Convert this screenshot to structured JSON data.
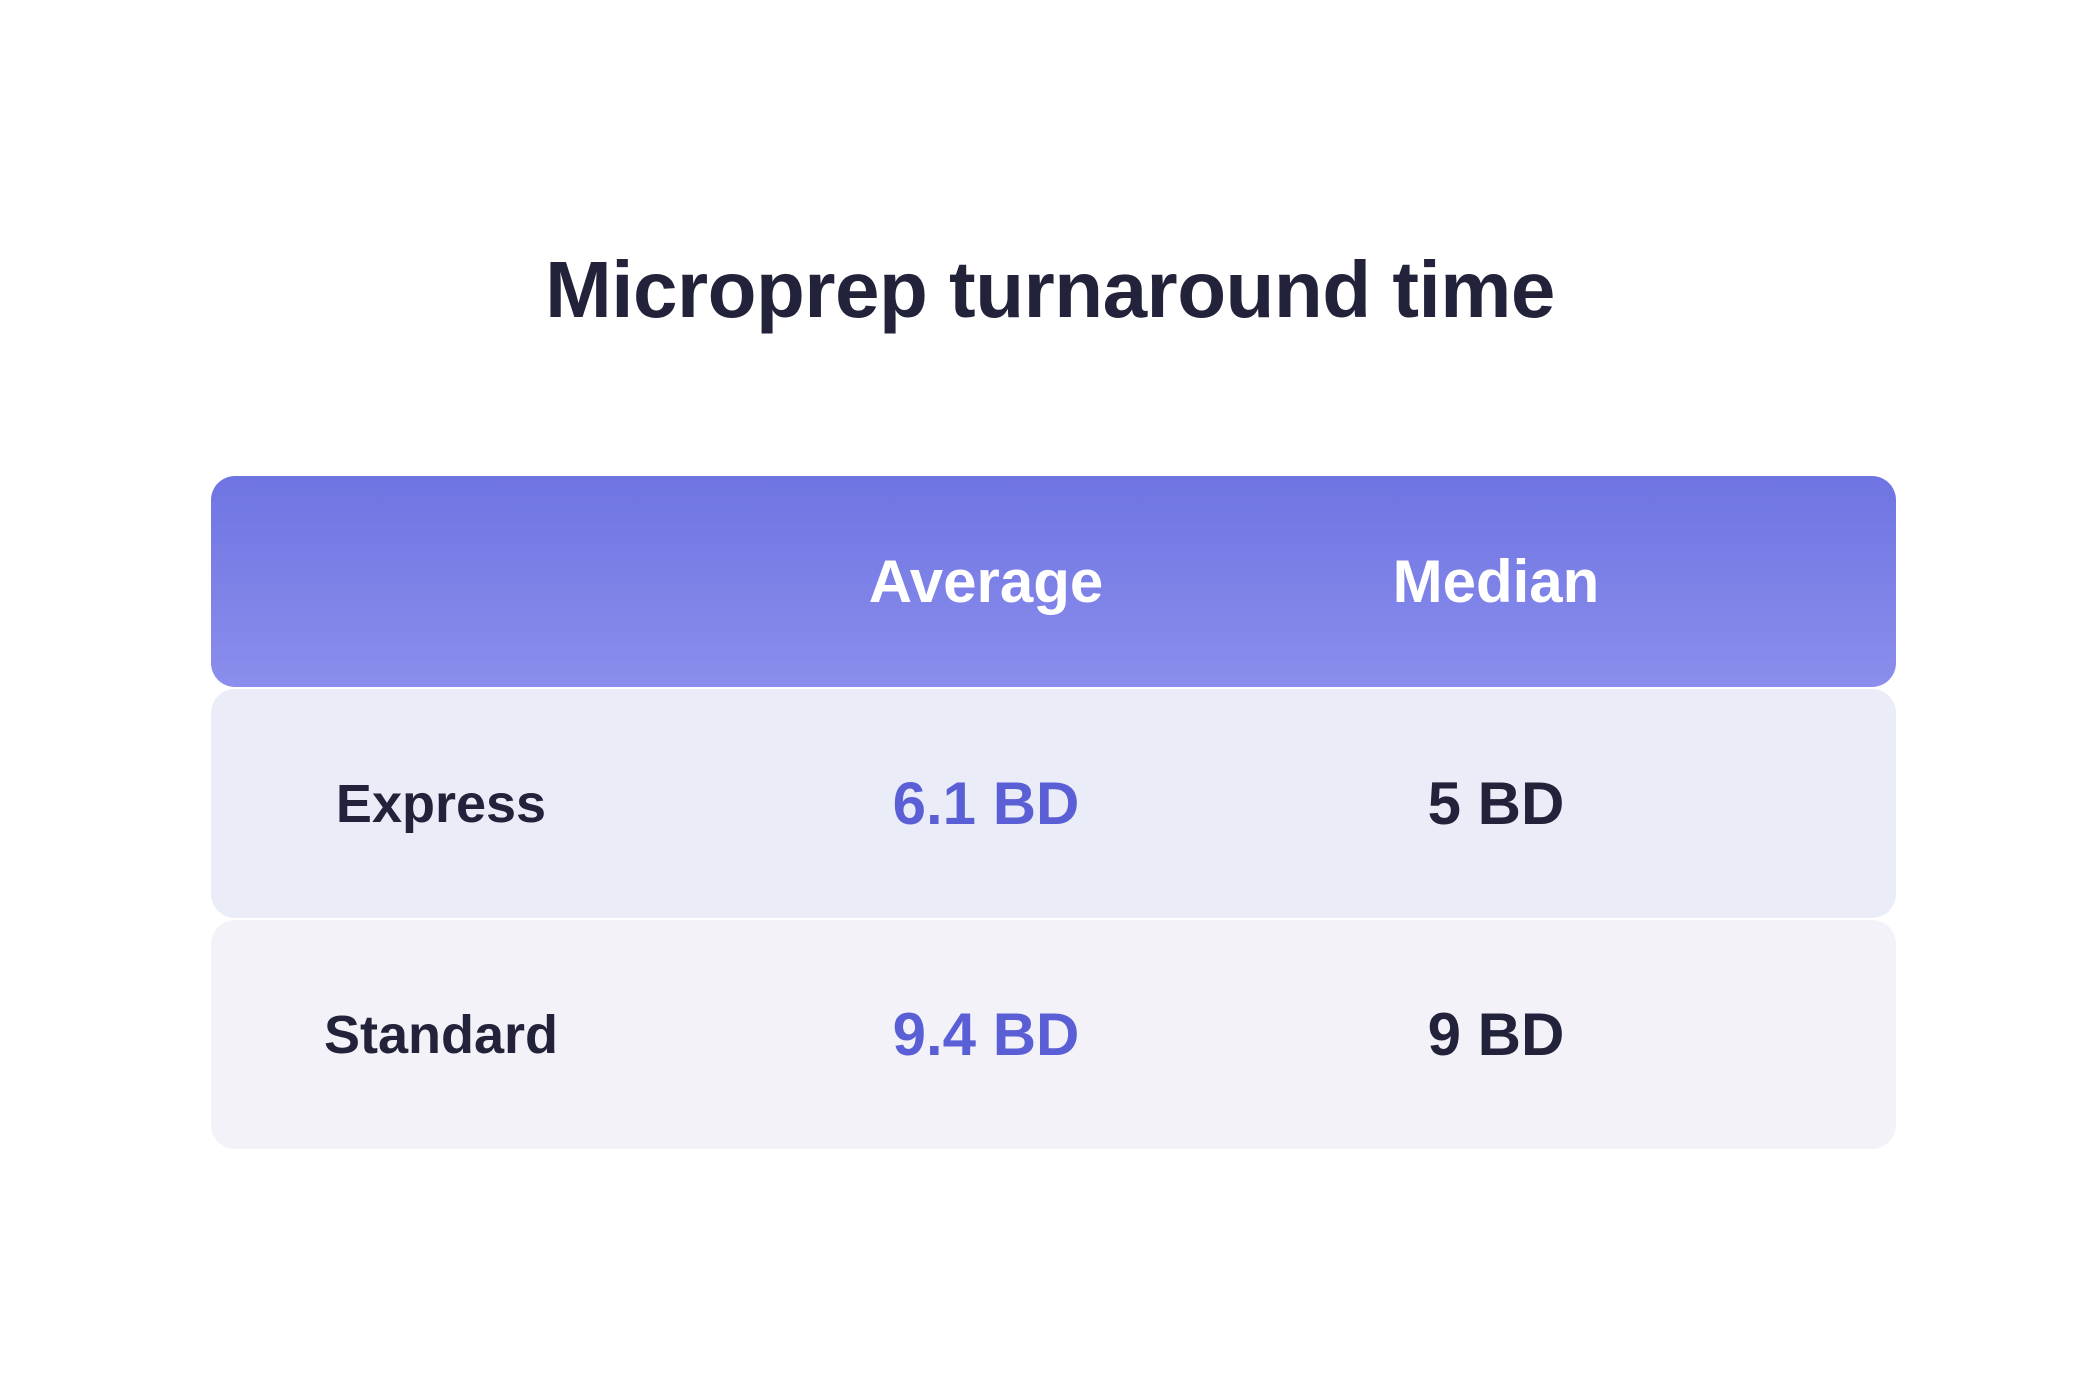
{
  "chart_data": {
    "type": "table",
    "title": "Microprep turnaround time",
    "columns": [
      "",
      "Average",
      "Median"
    ],
    "rows": [
      {
        "label": "Express",
        "average": "6.1 BD",
        "median": "5 BD"
      },
      {
        "label": "Standard",
        "average": "9.4 BD",
        "median": "9 BD"
      }
    ],
    "colors": {
      "header_gradient_top": "#6e74e2",
      "header_gradient_bottom": "#8b8eec",
      "express_row_bg": "#eaecf8",
      "standard_row_bg": "#f2f2f8",
      "average_text": "#5b5fd6",
      "primary_text": "#22223a"
    }
  }
}
